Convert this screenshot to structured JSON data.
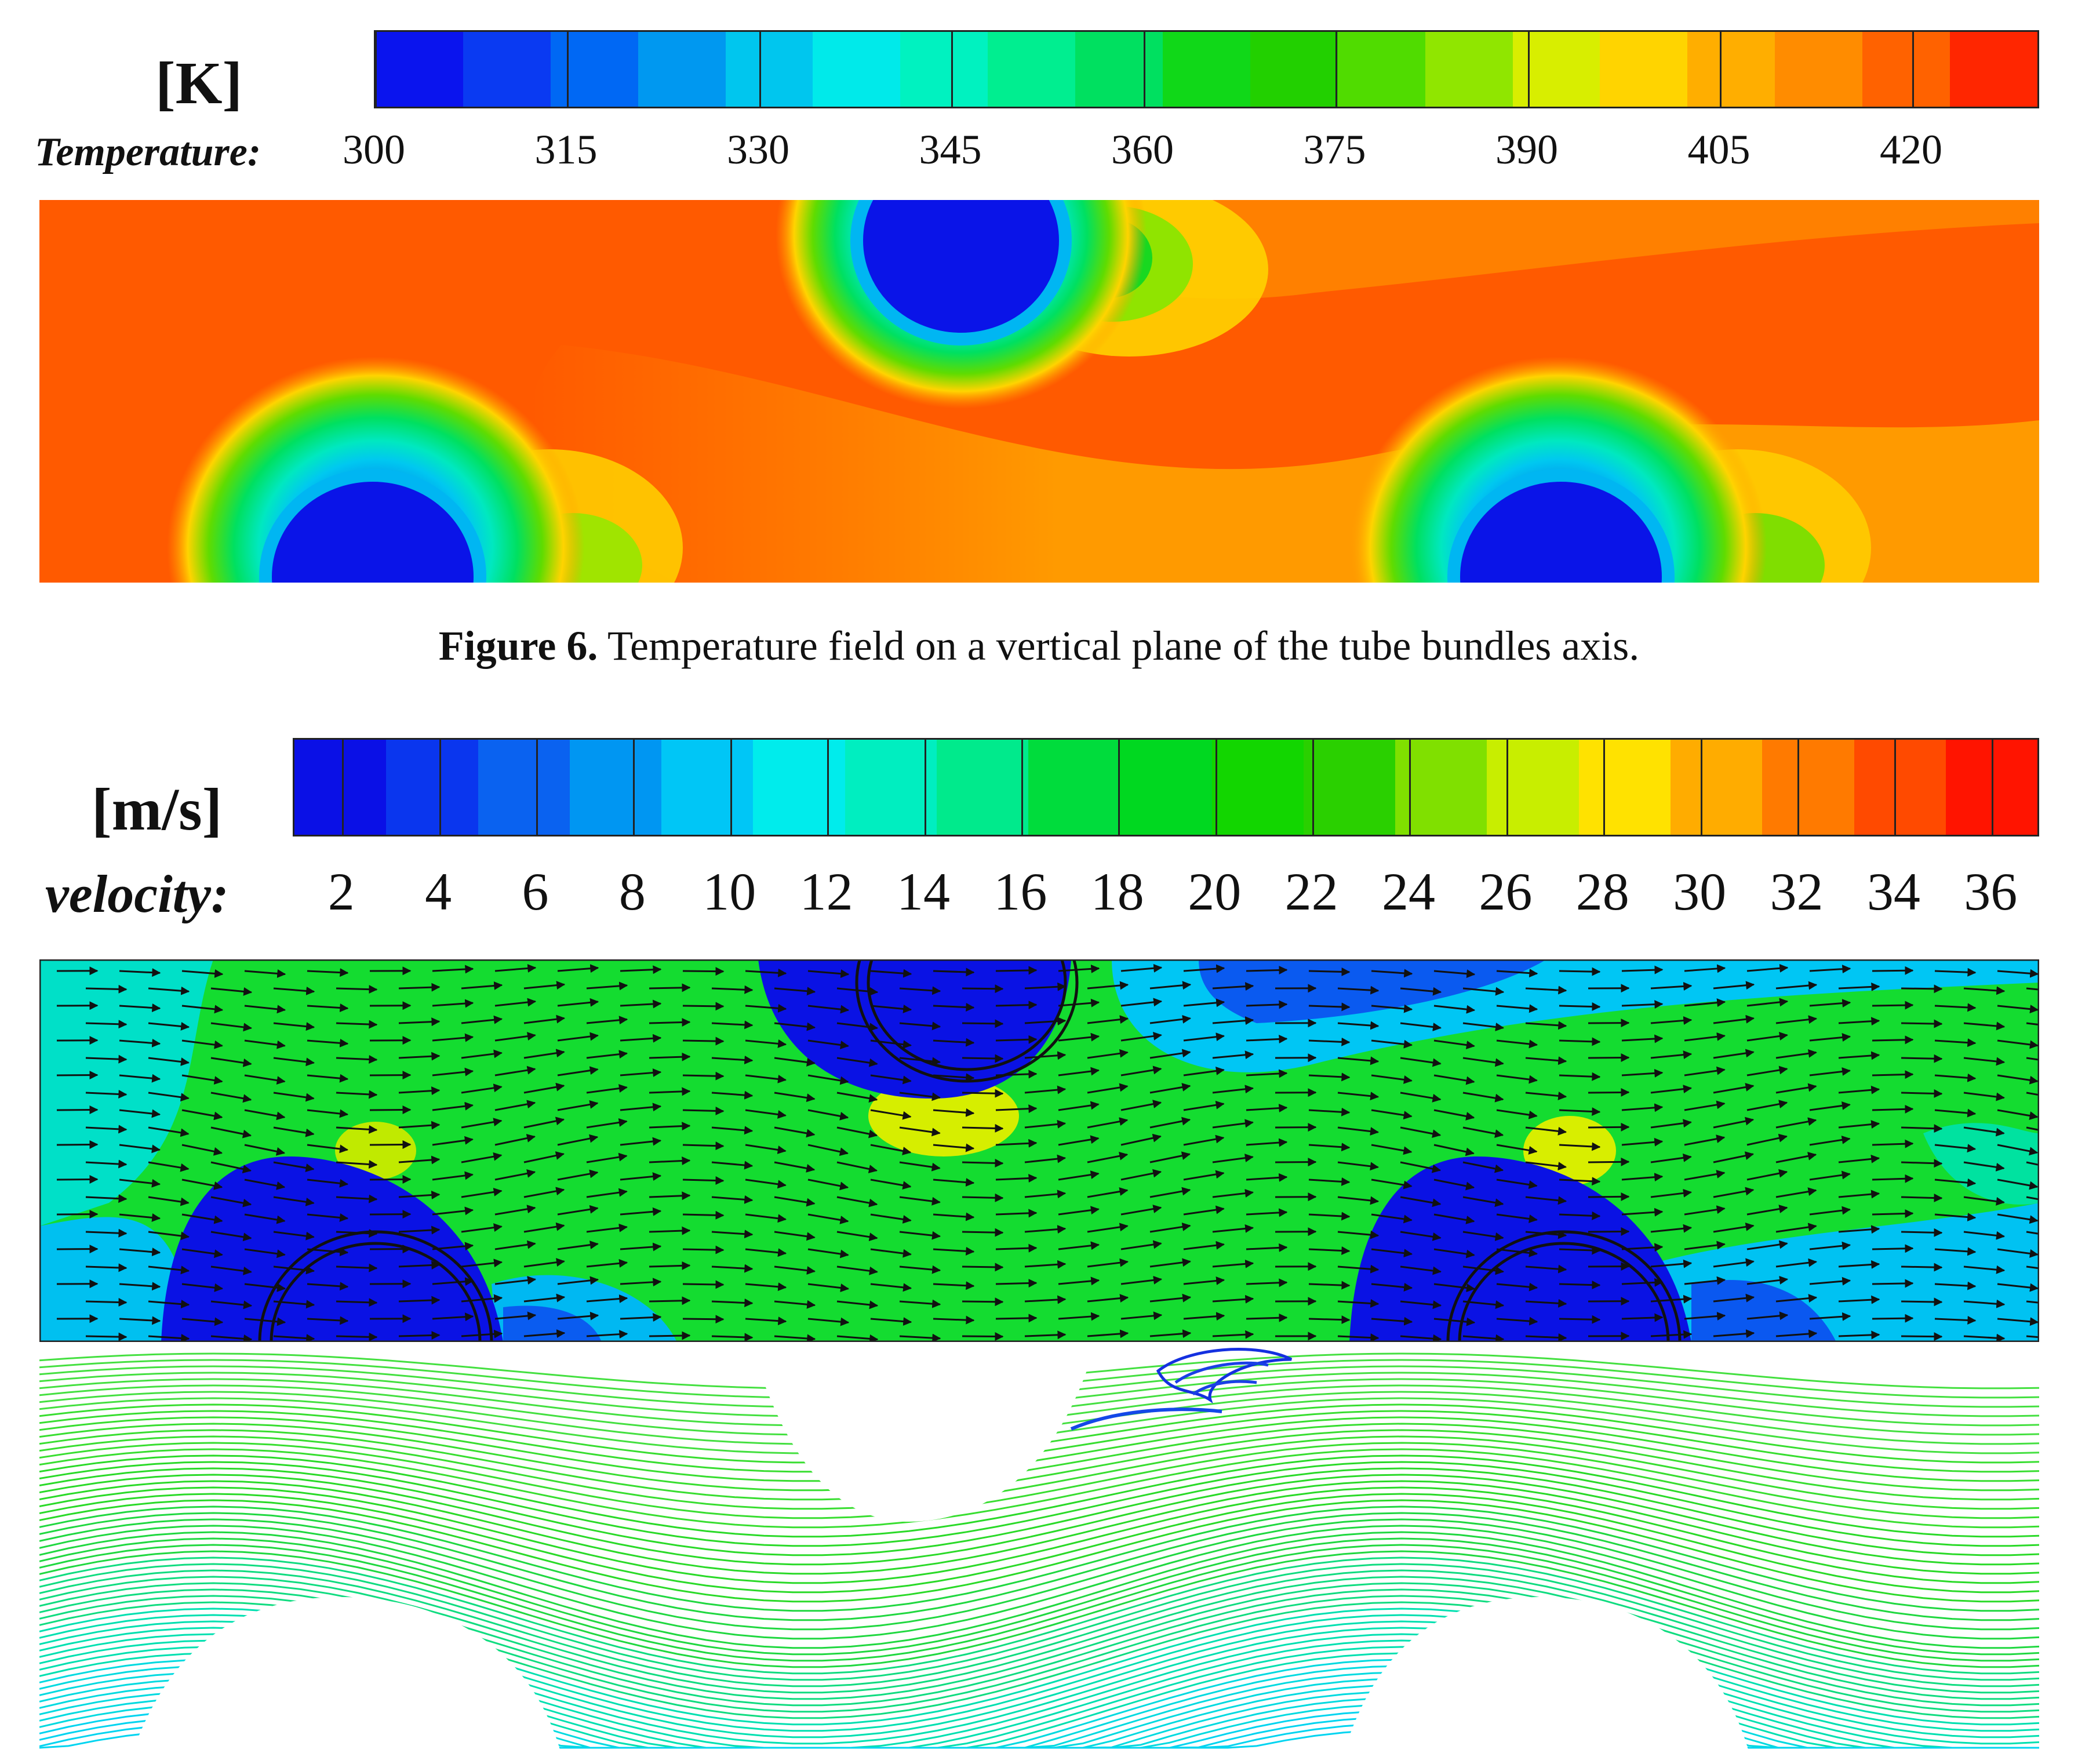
{
  "figure6": {
    "unit": "[K]",
    "quantity_label": "Temperature:",
    "ticks": [
      "300",
      "315",
      "330",
      "345",
      "360",
      "375",
      "390",
      "405",
      "420"
    ],
    "colorbar": {
      "range": [
        300,
        430
      ],
      "colors": [
        "#0a14ee",
        "#0a3af2",
        "#0068f4",
        "#0098f0",
        "#00c6ee",
        "#00eaea",
        "#00f2c0",
        "#00ee90",
        "#00e060",
        "#10d818",
        "#22d000",
        "#50dc00",
        "#90e600",
        "#d8ee00",
        "#ffd400",
        "#ffae00",
        "#ff8c00",
        "#ff6200",
        "#ff2600"
      ]
    },
    "caption_label": "Figure 6.",
    "caption_text": " Temperature field on a vertical plane of the tube bundles axis.",
    "background_color": "#ff6a00",
    "tube_color": "#0a14e8"
  },
  "figure7": {
    "unit": "[m/s]",
    "quantity_label": "velocity:",
    "ticks": [
      "2",
      "4",
      "6",
      "8",
      "10",
      "12",
      "14",
      "16",
      "18",
      "20",
      "22",
      "24",
      "26",
      "28",
      "30",
      "32",
      "34",
      "36"
    ],
    "colorbar": {
      "range": [
        1,
        37
      ],
      "colors": [
        "#0a10e6",
        "#0a36ee",
        "#0a62f0",
        "#0096f2",
        "#00c6f6",
        "#00ecec",
        "#00eec0",
        "#00ea8c",
        "#00dc3c",
        "#00d820",
        "#12d600",
        "#2ad000",
        "#80e000",
        "#c8ee00",
        "#ffe200",
        "#ffac00",
        "#ff7a00",
        "#ff4a00",
        "#ff1400"
      ]
    },
    "field_color": "#1ee022",
    "tube_color": "#0a12e4"
  }
}
